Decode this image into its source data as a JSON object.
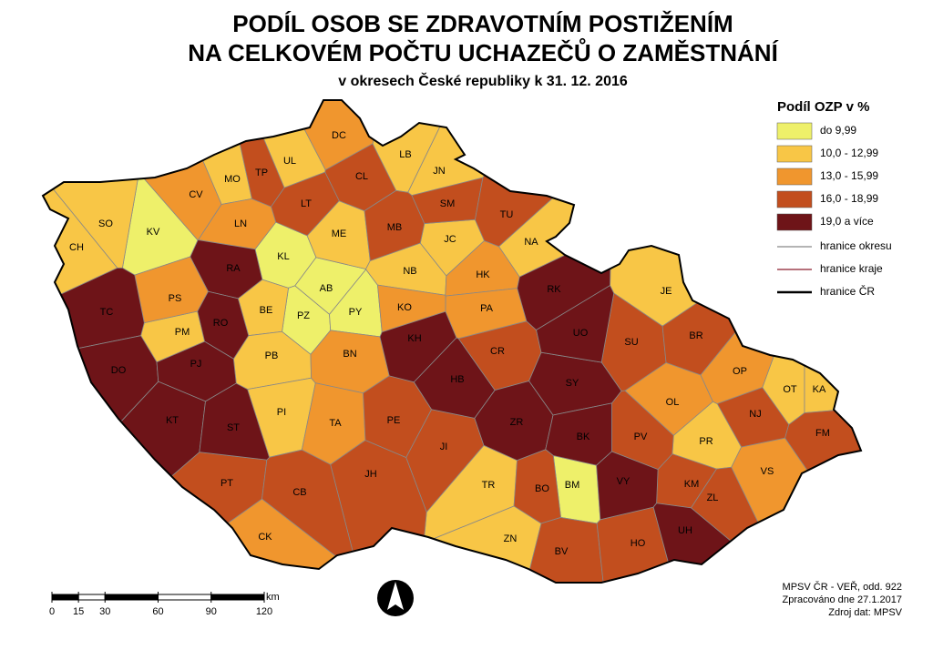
{
  "title": [
    "PODÍL  OSOB SE ZDRAVOTNÍM POSTIŽENÍM",
    "NA CELKOVÉM POČTU UCHAZEČŮ O ZAMĚSTNÁNÍ"
  ],
  "subtitle": "v okresech České republiky k 31. 12. 2016",
  "legend": {
    "title": "Podíl OZP v %",
    "classes": [
      {
        "label": "do 9,99",
        "color": "#eef06a",
        "districts": [
          "KV",
          "KL",
          "AB",
          "PZ",
          "PY",
          "BM"
        ]
      },
      {
        "label": "10,0 - 12,99",
        "color": "#f8c646",
        "districts": [
          "SO",
          "CH",
          "MO",
          "UL",
          "LB",
          "JN",
          "ME",
          "NB",
          "JC",
          "NA",
          "BE",
          "PB",
          "PI",
          "TR",
          "ZN",
          "JE",
          "OT",
          "KA",
          "PR",
          "PM"
        ]
      },
      {
        "label": "13,0 - 15,99",
        "color": "#f0962e",
        "districts": [
          "DC",
          "CV",
          "LN",
          "PS",
          "BN",
          "KO",
          "HK",
          "PA",
          "TA",
          "CK",
          "OL",
          "OP",
          "VS"
        ]
      },
      {
        "label": "16,0 - 18,99",
        "color": "#c24e1e",
        "districts": [
          "TP",
          "CL",
          "LT",
          "MB",
          "SM",
          "TU",
          "CR",
          "PE",
          "JI",
          "JH",
          "PT",
          "CB",
          "BO",
          "BV",
          "HO",
          "KM",
          "ZL",
          "SU",
          "BR",
          "NJ",
          "FM",
          "PV"
        ]
      },
      {
        "label": "19,0 a více",
        "color": "#6e1418",
        "districts": [
          "RA",
          "TC",
          "RO",
          "DO",
          "PJ",
          "KT",
          "ST",
          "KH",
          "HB",
          "ZR",
          "SY",
          "BK",
          "RK",
          "UO",
          "VY",
          "UH"
        ]
      }
    ],
    "lines": [
      {
        "label": "hranice okresu",
        "color": "#888888"
      },
      {
        "label": "hranice kraje",
        "color": "#8a1c2c"
      },
      {
        "label": "hranice ČR",
        "color": "#000000"
      }
    ]
  },
  "scale": {
    "ticks": [
      0,
      15,
      30,
      60,
      90,
      120
    ],
    "unit": "km"
  },
  "credits": [
    "MPSV ČR - VEŘ, odd. 922",
    "Zpracováno dne 27.1.2017",
    "Zdroj dat: MPSV"
  ]
}
